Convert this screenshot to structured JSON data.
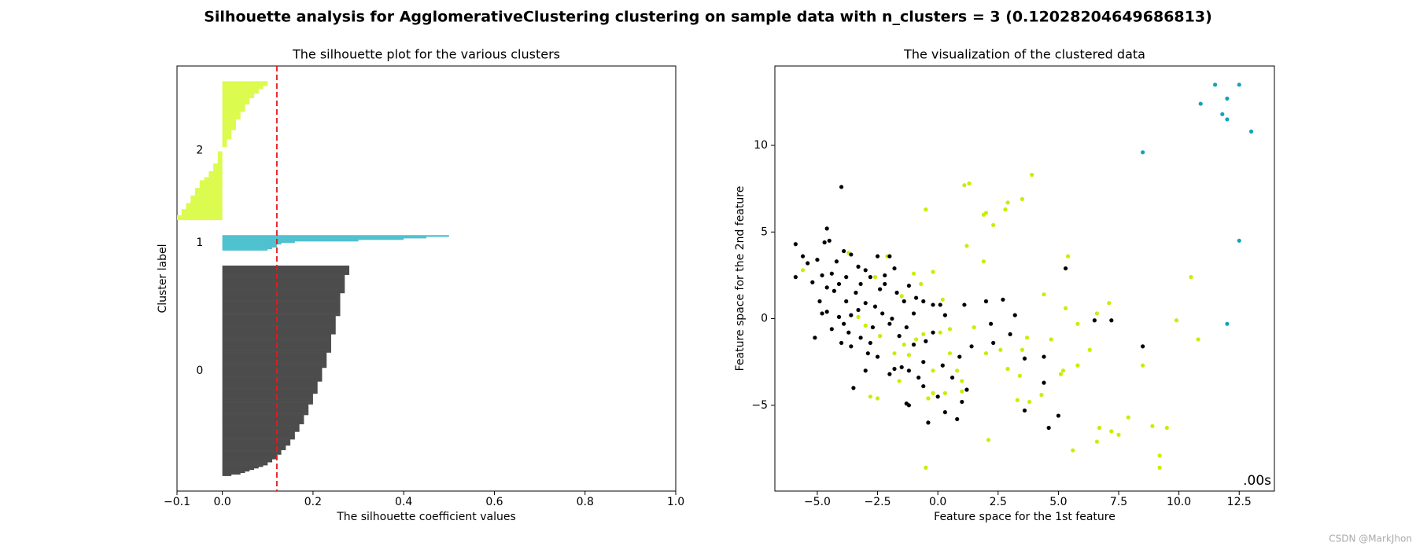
{
  "suptitle": "Silhouette analysis for AgglomerativeClustering clustering on sample data with n_clusters = 3 (0.12028204649686813)",
  "annotation": ".00s",
  "watermark": "CSDN @MarkJhon",
  "chart_data": [
    {
      "type": "silhouette",
      "title": "The silhouette plot for the various clusters",
      "xlabel": "The silhouette coefficient values",
      "ylabel": "Cluster label",
      "xlim": [
        -0.1,
        1.0
      ],
      "xticks": [
        {
          "value": -0.1,
          "label": "−0.1"
        },
        {
          "value": 0,
          "label": "0.0"
        },
        0.2,
        0.4,
        0.6,
        0.8,
        {
          "value": 1.0,
          "label": "1.0"
        }
      ],
      "ylim": [
        0,
        279
      ],
      "cluster_labels": [
        "0",
        "1",
        "2"
      ],
      "average_line": 0.12028204649686813,
      "average_color": "#e8191c",
      "series": [
        {
          "color": "#4c4c4c",
          "values": [
            0.02,
            0.04,
            0.05,
            0.06,
            0.07,
            0.08,
            0.09,
            0.1,
            0.1,
            0.11,
            0.11,
            0.12,
            0.12,
            0.12,
            0.13,
            0.13,
            0.13,
            0.14,
            0.14,
            0.14,
            0.15,
            0.15,
            0.15,
            0.15,
            0.16,
            0.16,
            0.16,
            0.16,
            0.16,
            0.17,
            0.17,
            0.17,
            0.17,
            0.17,
            0.18,
            0.18,
            0.18,
            0.18,
            0.18,
            0.18,
            0.19,
            0.19,
            0.19,
            0.19,
            0.19,
            0.19,
            0.19,
            0.2,
            0.2,
            0.2,
            0.2,
            0.2,
            0.2,
            0.2,
            0.21,
            0.21,
            0.21,
            0.21,
            0.21,
            0.21,
            0.21,
            0.21,
            0.22,
            0.22,
            0.22,
            0.22,
            0.22,
            0.22,
            0.22,
            0.22,
            0.22,
            0.23,
            0.23,
            0.23,
            0.23,
            0.23,
            0.23,
            0.23,
            0.23,
            0.23,
            0.23,
            0.24,
            0.24,
            0.24,
            0.24,
            0.24,
            0.24,
            0.24,
            0.24,
            0.24,
            0.24,
            0.24,
            0.24,
            0.25,
            0.25,
            0.25,
            0.25,
            0.25,
            0.25,
            0.25,
            0.25,
            0.25,
            0.25,
            0.25,
            0.25,
            0.26,
            0.26,
            0.26,
            0.26,
            0.26,
            0.26,
            0.26,
            0.26,
            0.26,
            0.26,
            0.26,
            0.26,
            0.26,
            0.26,
            0.26,
            0.27,
            0.27,
            0.27,
            0.27,
            0.27,
            0.27,
            0.27,
            0.27,
            0.27,
            0.27,
            0.27,
            0.27,
            0.28,
            0.28,
            0.28,
            0.28,
            0.28,
            0.28
          ]
        },
        {
          "color": "#4fc1cf",
          "values": [
            0.1,
            0.11,
            0.12,
            0.12,
            0.13,
            0.16,
            0.3,
            0.4,
            0.45,
            0.5
          ]
        },
        {
          "color": "#dbfb4e",
          "values": [
            -0.1,
            -0.1,
            -0.1,
            -0.09,
            -0.09,
            -0.09,
            -0.09,
            -0.08,
            -0.08,
            -0.08,
            -0.08,
            -0.07,
            -0.07,
            -0.07,
            -0.07,
            -0.07,
            -0.06,
            -0.06,
            -0.06,
            -0.06,
            -0.06,
            -0.05,
            -0.05,
            -0.05,
            -0.05,
            -0.05,
            -0.04,
            -0.04,
            -0.03,
            -0.03,
            -0.03,
            -0.03,
            -0.02,
            -0.02,
            -0.02,
            -0.02,
            -0.02,
            -0.01,
            -0.01,
            -0.01,
            -0.01,
            -0.01,
            -0.01,
            -0.01,
            -0.01,
            0.0,
            0.0,
            0.0,
            0.01,
            0.01,
            0.01,
            0.01,
            0.01,
            0.02,
            0.02,
            0.02,
            0.02,
            0.02,
            0.02,
            0.03,
            0.03,
            0.03,
            0.03,
            0.03,
            0.03,
            0.03,
            0.04,
            0.04,
            0.04,
            0.04,
            0.04,
            0.05,
            0.05,
            0.05,
            0.05,
            0.05,
            0.06,
            0.06,
            0.06,
            0.06,
            0.07,
            0.07,
            0.07,
            0.08,
            0.08,
            0.08,
            0.09,
            0.09,
            0.1,
            0.1,
            0.1
          ]
        }
      ]
    },
    {
      "type": "scatter",
      "title": "The visualization of the clustered data",
      "xlabel": "Feature space for the 1st feature",
      "ylabel": "Feature space for the 2nd feature",
      "xlim": [
        -6.76,
        13.96
      ],
      "ylim": [
        -9.95,
        14.58
      ],
      "xticks": [
        {
          "value": -5,
          "label": "−5.0"
        },
        {
          "value": -2.5,
          "label": "−2.5"
        },
        {
          "value": 0,
          "label": "0.0"
        },
        2.5,
        {
          "value": 5,
          "label": "5.0"
        },
        7.5,
        {
          "value": 10,
          "label": "10.0"
        },
        12.5
      ],
      "yticks": [
        {
          "value": -5,
          "label": "−5"
        },
        0,
        5,
        10
      ],
      "series": [
        {
          "color": "#c8ee00",
          "x": [
            -5.6,
            -3.7,
            -2.6,
            -2.1,
            -1.5,
            -1.0,
            -0.5,
            -0.7,
            -0.2,
            0.2,
            0.1,
            -0.6,
            -1.4,
            -0.9,
            -1.8,
            -2.4,
            -3.0,
            -2.8,
            -2.5,
            -1.6,
            -0.4,
            -0.2,
            0.3,
            0.5,
            0.8,
            1.0,
            1.0,
            1.1,
            1.3,
            1.2,
            1.9,
            2.0,
            1.9,
            2.0,
            2.0,
            2.1,
            2.3,
            2.8,
            2.9,
            3.5,
            3.9,
            2.9,
            3.4,
            3.5,
            3.7,
            3.3,
            3.8,
            4.3,
            4.4,
            4.7,
            5.1,
            5.2,
            5.3,
            5.4,
            5.6,
            5.8,
            5.8,
            6.3,
            6.6,
            6.7,
            6.6,
            7.1,
            7.2,
            7.5,
            7.9,
            8.5,
            8.9,
            9.2,
            9.2,
            9.5,
            9.9,
            10.5,
            10.8,
            -0.5,
            -0.2,
            -1.2,
            0.5,
            1.5,
            2.6,
            -3.3
          ],
          "values": [
            2.8,
            3.8,
            2.4,
            3.6,
            1.3,
            2.6,
            6.3,
            2.0,
            2.7,
            1.1,
            -0.8,
            -0.9,
            -1.5,
            -1.2,
            -2.0,
            -1.0,
            -0.4,
            -4.5,
            -4.6,
            -3.6,
            -4.6,
            -4.3,
            -4.3,
            -0.6,
            -3.0,
            -3.6,
            -4.2,
            7.7,
            7.8,
            4.2,
            6.0,
            6.1,
            3.3,
            1.0,
            -2.0,
            -7.0,
            5.4,
            6.3,
            6.7,
            6.9,
            8.3,
            -2.9,
            -3.3,
            -1.8,
            -1.1,
            -4.7,
            -4.8,
            -4.4,
            1.4,
            -1.2,
            -3.2,
            -3.0,
            0.6,
            3.6,
            -7.6,
            -0.3,
            -2.7,
            -1.8,
            -7.1,
            -6.3,
            0.3,
            0.9,
            -6.5,
            -6.7,
            -5.7,
            -2.7,
            -6.2,
            -7.9,
            -8.6,
            -6.3,
            -0.1,
            2.4,
            -1.2,
            -8.6,
            -3.0,
            -2.1,
            -2.0,
            -0.5,
            -1.8,
            0.1
          ]
        },
        {
          "color": "#13a3b5",
          "x": [
            11.5,
            12.5,
            12.0,
            10.9,
            11.8,
            12.0,
            13.0,
            8.5,
            12.5,
            12.0
          ],
          "values": [
            13.5,
            13.5,
            12.7,
            12.4,
            11.8,
            11.5,
            10.8,
            9.6,
            4.5,
            -0.3
          ]
        },
        {
          "color": "#000000",
          "x": [
            -5.9,
            -5.6,
            -5.4,
            -5.9,
            -5.0,
            -4.7,
            -4.6,
            -4.5,
            -4.2,
            -4.0,
            -4.4,
            -4.8,
            -5.2,
            -4.9,
            -4.6,
            -4.3,
            -4.1,
            -3.8,
            -3.6,
            -3.3,
            -3.0,
            -2.8,
            -2.5,
            -2.2,
            -2.0,
            -1.8,
            -1.7,
            -1.4,
            -1.2,
            -0.9,
            -0.6,
            -0.2,
            0.1,
            0.3,
            -0.2,
            -0.5,
            -1.0,
            -1.3,
            -1.6,
            -2.0,
            -2.3,
            -2.6,
            -3.0,
            -3.3,
            -3.6,
            -3.9,
            -4.1,
            -4.4,
            -4.8,
            -5.1,
            -4.0,
            -3.6,
            -3.2,
            -2.8,
            -2.5,
            -3.0,
            -3.5,
            -2.0,
            -1.5,
            -1.8,
            -1.2,
            -0.8,
            -0.6,
            -1.3,
            -1.2,
            -0.4,
            0.0,
            0.3,
            0.6,
            0.2,
            0.9,
            1.2,
            1.0,
            0.8,
            1.4,
            2.2,
            2.3,
            3.0,
            3.2,
            2.0,
            2.7,
            1.1,
            3.6,
            3.6,
            4.4,
            4.4,
            5.0,
            4.6,
            5.3,
            6.5,
            7.2,
            8.5,
            -2.7,
            -3.8,
            -4.6,
            -2.4,
            -1.0,
            -1.9,
            -3.2,
            -3.9,
            -3.4,
            -2.2,
            -0.6,
            -2.9,
            -3.7
          ],
          "values": [
            4.3,
            3.6,
            3.2,
            2.4,
            3.4,
            4.4,
            5.2,
            4.5,
            3.3,
            7.6,
            2.6,
            2.5,
            2.1,
            1.0,
            0.4,
            1.6,
            2.0,
            2.4,
            3.7,
            3.0,
            2.8,
            2.4,
            3.6,
            2.0,
            3.6,
            2.9,
            1.5,
            1.0,
            1.9,
            1.2,
            1.0,
            0.8,
            0.8,
            0.2,
            -0.8,
            -1.3,
            -1.5,
            -0.5,
            -1.0,
            -0.3,
            0.3,
            0.7,
            0.9,
            0.5,
            0.2,
            -0.3,
            0.1,
            -0.6,
            0.3,
            -1.1,
            -1.4,
            -1.6,
            -1.1,
            -1.4,
            -2.2,
            -3.0,
            -4.0,
            -3.2,
            -2.8,
            -2.9,
            -3.0,
            -3.4,
            -3.9,
            -4.9,
            -5.0,
            -6.0,
            -4.5,
            -5.4,
            -3.4,
            -2.7,
            -2.2,
            -4.1,
            -4.8,
            -5.8,
            -1.6,
            -0.3,
            -1.4,
            -0.9,
            0.2,
            1.0,
            1.1,
            0.8,
            -2.3,
            -5.3,
            -3.7,
            -2.2,
            -5.6,
            -6.3,
            2.9,
            -0.1,
            -0.1,
            -1.6,
            -0.5,
            1.0,
            1.8,
            1.7,
            0.3,
            0.0,
            2.0,
            3.9,
            1.5,
            2.5,
            -2.5,
            -2.0,
            -0.8
          ]
        }
      ]
    }
  ]
}
